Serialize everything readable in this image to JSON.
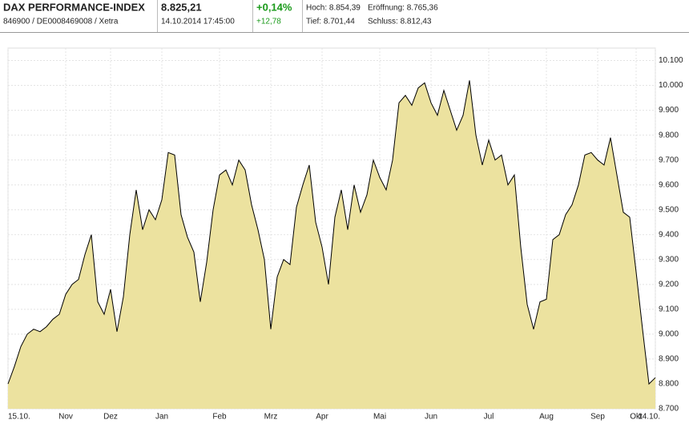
{
  "header": {
    "title": "DAX PERFORMANCE-INDEX",
    "subtitle": "846900 / DE0008469008 / Xetra",
    "price": "8.825,21",
    "datetime": "14.10.2014 17:45:00",
    "change_pct": "+0,14%",
    "change_abs": "+12,78",
    "high": "Hoch: 8.854,39",
    "low": "Tief: 8.701,44",
    "open": "Eröffnung: 8.765,36",
    "close": "Schluss: 8.812,43"
  },
  "chart_data": {
    "type": "area",
    "color": "#ece29f",
    "line_color": "#000000",
    "grid": true,
    "categories": [
      "15.10.",
      null,
      null,
      null,
      null,
      null,
      null,
      null,
      null,
      "Nov",
      null,
      null,
      null,
      null,
      null,
      null,
      "Dez",
      null,
      null,
      null,
      null,
      null,
      null,
      null,
      "Jan",
      null,
      null,
      null,
      null,
      null,
      null,
      null,
      null,
      "Feb",
      null,
      null,
      null,
      null,
      null,
      null,
      null,
      "Mrz",
      null,
      null,
      null,
      null,
      null,
      null,
      null,
      "Apr",
      null,
      null,
      null,
      null,
      null,
      null,
      null,
      null,
      "Mai",
      null,
      null,
      null,
      null,
      null,
      null,
      null,
      "Jun",
      null,
      null,
      null,
      null,
      null,
      null,
      null,
      null,
      "Jul",
      null,
      null,
      null,
      null,
      null,
      null,
      null,
      null,
      "Aug",
      null,
      null,
      null,
      null,
      null,
      null,
      null,
      "Sep",
      null,
      null,
      null,
      null,
      null,
      "Okt",
      null,
      null,
      "14.10."
    ],
    "values": [
      8800,
      8870,
      8950,
      9000,
      9020,
      9010,
      9030,
      9060,
      9080,
      9160,
      9200,
      9220,
      9320,
      9400,
      9130,
      9080,
      9180,
      9010,
      9150,
      9400,
      9580,
      9420,
      9500,
      9460,
      9540,
      9730,
      9720,
      9480,
      9390,
      9330,
      9130,
      9290,
      9500,
      9640,
      9660,
      9600,
      9700,
      9660,
      9520,
      9420,
      9300,
      9020,
      9230,
      9300,
      9280,
      9510,
      9600,
      9680,
      9450,
      9350,
      9200,
      9470,
      9580,
      9420,
      9600,
      9490,
      9560,
      9700,
      9630,
      9580,
      9700,
      9930,
      9960,
      9920,
      9990,
      10010,
      9930,
      9880,
      9980,
      9900,
      9820,
      9880,
      10020,
      9800,
      9680,
      9780,
      9700,
      9720,
      9600,
      9640,
      9350,
      9120,
      9020,
      9130,
      9140,
      9380,
      9400,
      9480,
      9520,
      9600,
      9720,
      9730,
      9700,
      9680,
      9790,
      9640,
      9490,
      9470,
      9250,
      9020,
      8800,
      8825
    ],
    "ylim": [
      8700,
      10150
    ],
    "yticks": [
      {
        "value": 8700,
        "label": "8.700"
      },
      {
        "value": 8800,
        "label": "8.800"
      },
      {
        "value": 8900,
        "label": "8.900"
      },
      {
        "value": 9000,
        "label": "9.000"
      },
      {
        "value": 9100,
        "label": "9.100"
      },
      {
        "value": 9200,
        "label": "9.200"
      },
      {
        "value": 9300,
        "label": "9.300"
      },
      {
        "value": 9400,
        "label": "9.400"
      },
      {
        "value": 9500,
        "label": "9.500"
      },
      {
        "value": 9600,
        "label": "9.600"
      },
      {
        "value": 9700,
        "label": "9.700"
      },
      {
        "value": 9800,
        "label": "9.800"
      },
      {
        "value": 9900,
        "label": "9.900"
      },
      {
        "value": 10000,
        "label": "10.000"
      },
      {
        "value": 10100,
        "label": "10.100"
      }
    ]
  }
}
